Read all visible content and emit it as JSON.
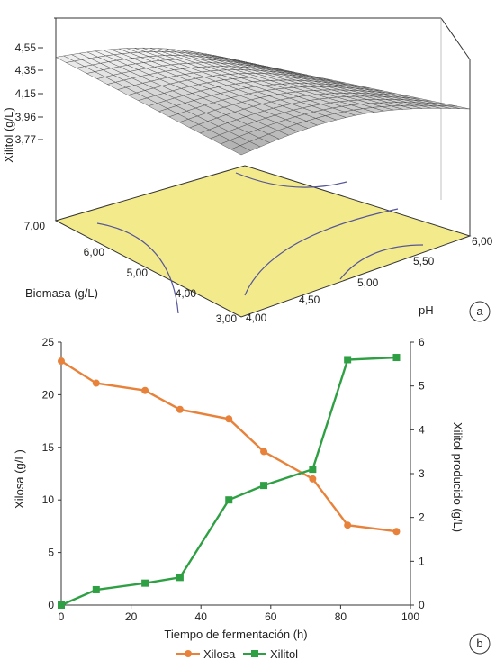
{
  "chart_data": [
    {
      "type": "surface",
      "panel_label": "a",
      "zlabel": "Xilitol (g/L)",
      "xlabel": "pH",
      "ylabel": "Biomasa (g/L)",
      "x_ticks": [
        "4,00",
        "4,50",
        "5,00",
        "5,50",
        "6,00"
      ],
      "y_ticks": [
        "3,00",
        "4,00",
        "5,00",
        "6,00",
        "7,00"
      ],
      "z_ticks": [
        "3,77",
        "3,96",
        "4,15",
        "4,35",
        "4,55"
      ],
      "xlim": [
        4.0,
        6.0
      ],
      "ylim": [
        3.0,
        7.0
      ],
      "zlim": [
        3.6,
        4.55
      ],
      "surface_color": "#c8c8c8",
      "floor_color": "#f3ea8c",
      "contour_color": "#555599"
    },
    {
      "type": "line",
      "panel_label": "b",
      "xlabel": "Tiempo de fermentación (h)",
      "ylabel": "Xilosa (g/L)",
      "y2label": "Xilitol producido (g/L)",
      "xlim": [
        0,
        100
      ],
      "ylim": [
        0,
        25
      ],
      "y2lim": [
        0,
        6
      ],
      "x_ticks": [
        "0",
        "20",
        "40",
        "60",
        "80",
        "100"
      ],
      "y_ticks": [
        "0",
        "5",
        "10",
        "15",
        "20",
        "25"
      ],
      "y2_ticks": [
        "0",
        "1",
        "2",
        "3",
        "4",
        "5",
        "6"
      ],
      "legend_position": "bottom",
      "series": [
        {
          "name": "Xilosa",
          "axis": "left",
          "color": "#e8823a",
          "marker": "circle",
          "x": [
            0,
            10,
            24,
            34,
            48,
            58,
            72,
            82,
            96
          ],
          "values": [
            23.2,
            21.1,
            20.4,
            18.6,
            17.7,
            14.6,
            12.0,
            7.6,
            7.0
          ]
        },
        {
          "name": "Xilitol",
          "axis": "right",
          "color": "#2ea043",
          "marker": "square",
          "x": [
            0,
            10,
            24,
            34,
            48,
            58,
            72,
            82,
            96
          ],
          "values": [
            0.0,
            0.35,
            0.5,
            0.63,
            2.4,
            2.73,
            3.1,
            5.6,
            5.65
          ]
        }
      ]
    }
  ]
}
